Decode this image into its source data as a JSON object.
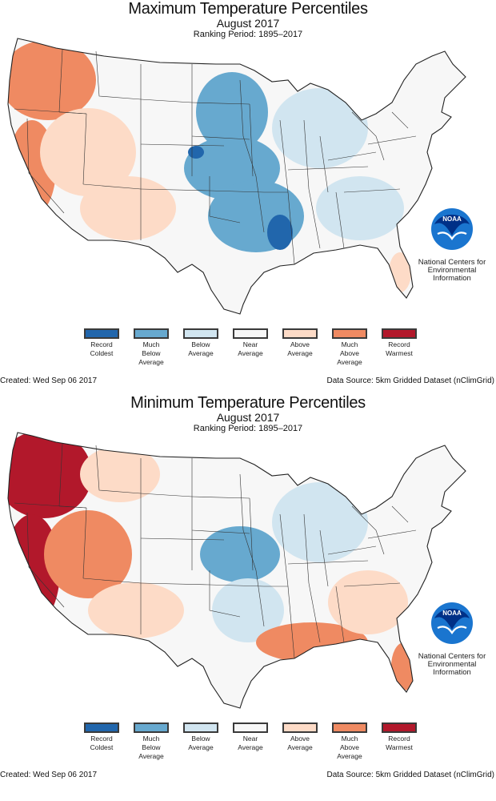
{
  "colors": {
    "record_coldest": "#2166ac",
    "much_below": "#67a9cf",
    "below": "#d1e5f0",
    "near": "#f7f7f7",
    "above": "#fddbc7",
    "much_above": "#ef8a62",
    "record_warmest": "#b2182b",
    "noaa_blue": "#1a75cf",
    "noaa_dark": "#003087"
  },
  "legend": [
    {
      "key": "record_coldest",
      "label_lines": [
        "Record",
        "Coldest"
      ]
    },
    {
      "key": "much_below",
      "label_lines": [
        "Much",
        "Below",
        "Average"
      ]
    },
    {
      "key": "below",
      "label_lines": [
        "Below",
        "Average"
      ]
    },
    {
      "key": "near",
      "label_lines": [
        "Near",
        "Average"
      ]
    },
    {
      "key": "above",
      "label_lines": [
        "Above",
        "Average"
      ]
    },
    {
      "key": "much_above",
      "label_lines": [
        "Much",
        "Above",
        "Average"
      ]
    },
    {
      "key": "record_warmest",
      "label_lines": [
        "Record",
        "Warmest"
      ]
    }
  ],
  "logo": {
    "badge_text": "NOAA",
    "org_lines": [
      "National Centers for",
      "Environmental",
      "Information"
    ]
  },
  "panels": [
    {
      "id": "max",
      "title": "Maximum Temperature Percentiles",
      "subtitle": "August 2017",
      "period": "Ranking Period: 1895–2017",
      "created": "Created: Wed Sep 06 2017",
      "source": "Data Source: 5km Gridded Dataset (nClimGrid)",
      "regions": [
        {
          "name": "Pacific Northwest",
          "category": "much_above"
        },
        {
          "name": "California Coast",
          "category": "much_above"
        },
        {
          "name": "Great Basin",
          "category": "above"
        },
        {
          "name": "Southwest",
          "category": "above"
        },
        {
          "name": "Northern Rockies",
          "category": "near"
        },
        {
          "name": "Northern Plains",
          "category": "much_below"
        },
        {
          "name": "Central Plains",
          "category": "much_below"
        },
        {
          "name": "South Central",
          "category": "much_below"
        },
        {
          "name": "Lower Mississippi",
          "category": "record_coldest"
        },
        {
          "name": "Midwest",
          "category": "below"
        },
        {
          "name": "Southeast",
          "category": "below"
        },
        {
          "name": "Northeast",
          "category": "near"
        },
        {
          "name": "Florida",
          "category": "above"
        }
      ]
    },
    {
      "id": "min",
      "title": "Minimum Temperature Percentiles",
      "subtitle": "August 2017",
      "period": "Ranking Period: 1895–2017",
      "created": "Created: Wed Sep 06 2017",
      "source": "Data Source: 5km Gridded Dataset (nClimGrid)",
      "regions": [
        {
          "name": "Pacific Northwest",
          "category": "record_warmest"
        },
        {
          "name": "California",
          "category": "record_warmest"
        },
        {
          "name": "Great Basin",
          "category": "much_above"
        },
        {
          "name": "Southwest",
          "category": "above"
        },
        {
          "name": "Northern Rockies",
          "category": "above"
        },
        {
          "name": "Northern Plains",
          "category": "near"
        },
        {
          "name": "Central Plains",
          "category": "much_below"
        },
        {
          "name": "South Central",
          "category": "below"
        },
        {
          "name": "Gulf Coast",
          "category": "much_above"
        },
        {
          "name": "Midwest",
          "category": "below"
        },
        {
          "name": "Southeast",
          "category": "above"
        },
        {
          "name": "Northeast",
          "category": "near"
        },
        {
          "name": "Florida",
          "category": "much_above"
        }
      ]
    }
  ]
}
